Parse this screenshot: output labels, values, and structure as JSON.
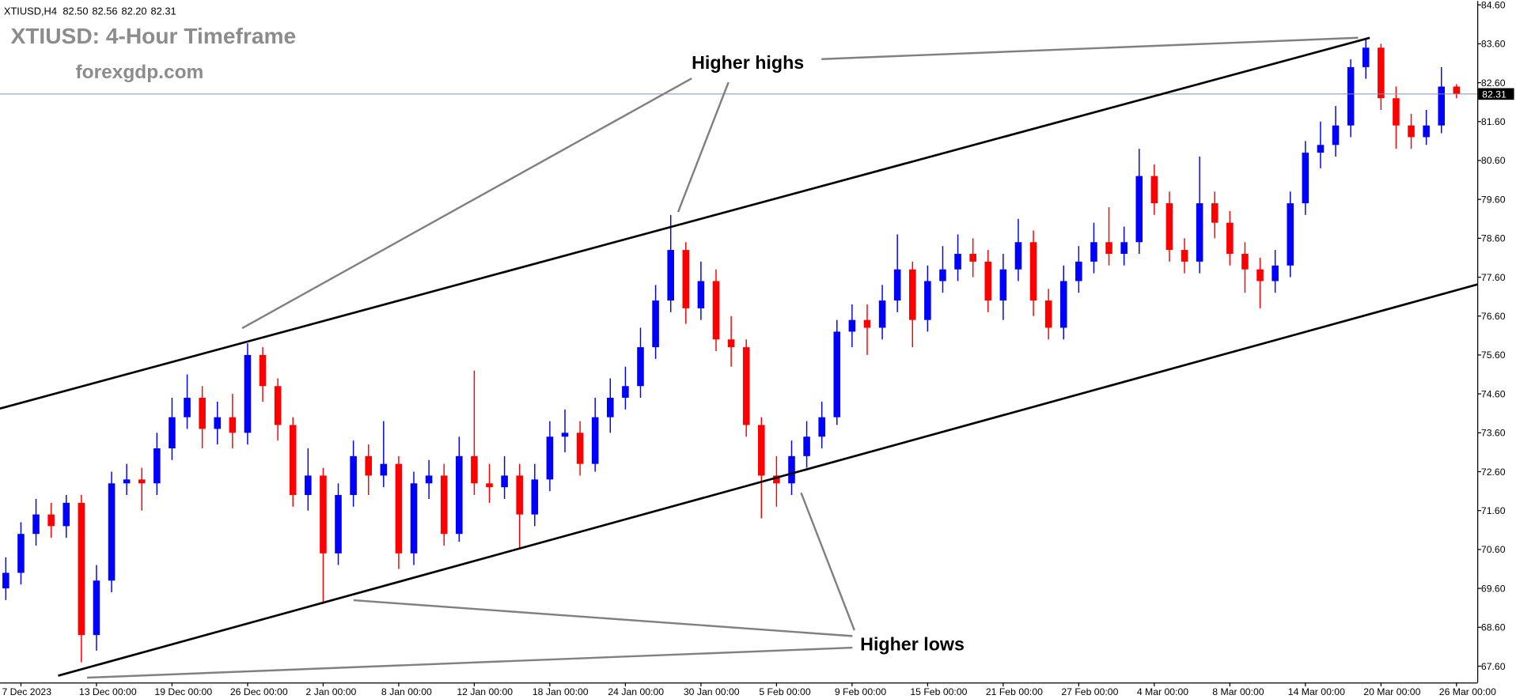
{
  "chart_data": {
    "type": "candlestick",
    "title": "XTIUSD: 4-Hour Timeframe",
    "watermark": "forexgdp.com",
    "quote": {
      "symbol": "XTIUSD,H4",
      "values": [
        "82.50",
        "82.56",
        "82.20",
        "82.31"
      ]
    },
    "annotations": [
      "Higher highs",
      "Higher lows"
    ],
    "up_color": "#0000ff",
    "down_color": "#ff0000",
    "categories": [
      null,
      "7 Dec 2023",
      null,
      null,
      null,
      null,
      "13 Dec 00:00",
      null,
      null,
      null,
      null,
      "19 Dec 00:00",
      null,
      null,
      null,
      null,
      "26 Dec 00:00",
      null,
      null,
      null,
      null,
      "2 Jan 00:00",
      null,
      null,
      null,
      null,
      "8 Jan 00:00",
      null,
      null,
      null,
      null,
      "12 Jan 00:00",
      null,
      null,
      null,
      null,
      "18 Jan 00:00",
      null,
      null,
      null,
      null,
      "24 Jan 00:00",
      null,
      null,
      null,
      null,
      "30 Jan 00:00",
      null,
      null,
      null,
      null,
      "5 Feb 00:00",
      null,
      null,
      null,
      null,
      "9 Feb 00:00",
      null,
      null,
      null,
      null,
      "15 Feb 00:00",
      null,
      null,
      null,
      null,
      "21 Feb 00:00",
      null,
      null,
      null,
      null,
      "27 Feb 00:00",
      null,
      null,
      null,
      null,
      "4 Mar 00:00",
      null,
      null,
      null,
      null,
      "8 Mar 00:00",
      null,
      null,
      null,
      null,
      "14 Mar 00:00",
      null,
      null,
      null,
      null,
      "20 Mar 00:00",
      null,
      null,
      null,
      null,
      "26 Mar 00:00"
    ],
    "open": [
      69.6,
      70.0,
      71.0,
      71.5,
      71.2,
      71.8,
      68.4,
      69.8,
      72.3,
      72.4,
      72.3,
      73.2,
      74.0,
      74.5,
      73.7,
      74.0,
      73.6,
      75.6,
      74.8,
      73.8,
      72.0,
      72.5,
      70.5,
      72.0,
      73.0,
      72.5,
      72.8,
      70.5,
      72.3,
      72.5,
      71.0,
      73.0,
      72.3,
      72.2,
      72.5,
      71.5,
      72.4,
      73.5,
      73.6,
      72.8,
      74.0,
      74.5,
      74.8,
      75.8,
      77.0,
      78.3,
      76.8,
      77.5,
      76.0,
      75.8,
      73.8,
      72.5,
      72.3,
      73.0,
      73.5,
      74.0,
      76.2,
      76.5,
      76.3,
      77.0,
      77.8,
      76.5,
      77.5,
      77.8,
      78.2,
      78.0,
      77.0,
      77.8,
      78.5,
      77.0,
      76.3,
      77.5,
      78.0,
      78.5,
      78.2,
      78.5,
      80.2,
      79.5,
      78.3,
      78.0,
      79.5,
      79.0,
      78.2,
      77.8,
      77.5,
      77.9,
      79.5,
      80.8,
      81.0,
      81.5,
      83.0,
      83.5,
      82.2,
      81.5,
      81.2,
      81.5,
      82.5
    ],
    "high": [
      70.4,
      71.3,
      71.9,
      71.8,
      72.0,
      72.0,
      70.2,
      72.6,
      72.8,
      72.7,
      73.6,
      74.5,
      75.1,
      74.8,
      74.4,
      74.6,
      75.9,
      75.8,
      75.0,
      74.0,
      73.2,
      72.7,
      72.3,
      73.4,
      73.3,
      73.9,
      73.0,
      72.6,
      72.9,
      72.8,
      73.5,
      75.2,
      72.8,
      73.0,
      72.8,
      72.8,
      73.9,
      74.2,
      73.9,
      74.5,
      75.0,
      75.3,
      76.3,
      77.4,
      79.2,
      78.5,
      78.0,
      77.8,
      76.6,
      76.0,
      74.0,
      73.0,
      73.4,
      73.9,
      74.4,
      76.5,
      76.9,
      76.9,
      77.4,
      78.7,
      78.0,
      77.9,
      78.4,
      78.7,
      78.6,
      78.3,
      78.2,
      79.1,
      78.8,
      77.3,
      77.9,
      78.4,
      79.0,
      79.4,
      78.9,
      80.9,
      80.5,
      79.8,
      78.6,
      80.7,
      79.8,
      79.3,
      78.5,
      78.1,
      78.3,
      79.8,
      81.1,
      81.6,
      82.0,
      83.2,
      83.7,
      83.6,
      82.5,
      81.8,
      81.9,
      83.0,
      82.56
    ],
    "low": [
      69.3,
      69.7,
      70.7,
      70.9,
      70.9,
      67.7,
      68.0,
      69.5,
      72.0,
      71.6,
      72.0,
      72.9,
      73.7,
      73.2,
      73.3,
      73.2,
      73.3,
      74.4,
      73.4,
      71.7,
      71.6,
      69.2,
      70.2,
      71.7,
      72.0,
      72.2,
      70.1,
      70.2,
      71.9,
      70.7,
      70.8,
      72.0,
      71.8,
      71.9,
      70.6,
      71.2,
      72.1,
      73.1,
      72.5,
      72.6,
      73.6,
      74.2,
      74.5,
      75.5,
      76.7,
      76.4,
      76.5,
      75.7,
      75.3,
      73.5,
      71.4,
      71.7,
      72.0,
      72.7,
      73.2,
      73.8,
      75.8,
      75.6,
      76.0,
      76.7,
      75.8,
      76.2,
      77.2,
      77.5,
      77.6,
      76.7,
      76.5,
      77.5,
      76.6,
      76.0,
      76.0,
      77.2,
      77.7,
      77.9,
      77.9,
      78.2,
      79.2,
      78.0,
      77.7,
      77.7,
      78.6,
      77.9,
      77.2,
      76.8,
      77.2,
      77.6,
      79.2,
      80.4,
      80.7,
      81.2,
      82.7,
      81.9,
      80.9,
      80.9,
      81.0,
      81.3,
      82.2
    ],
    "close": [
      70.0,
      71.0,
      71.5,
      71.2,
      71.8,
      68.4,
      69.8,
      72.3,
      72.4,
      72.3,
      73.2,
      74.0,
      74.5,
      73.7,
      74.0,
      73.6,
      75.6,
      74.8,
      73.8,
      72.0,
      72.5,
      70.5,
      72.0,
      73.0,
      72.5,
      72.8,
      70.5,
      72.3,
      72.5,
      71.0,
      73.0,
      72.3,
      72.2,
      72.5,
      71.5,
      72.4,
      73.5,
      73.6,
      72.8,
      74.0,
      74.5,
      74.8,
      75.8,
      77.0,
      78.3,
      76.8,
      77.5,
      76.0,
      75.8,
      73.8,
      72.5,
      72.3,
      73.0,
      73.5,
      74.0,
      76.2,
      76.5,
      76.3,
      77.0,
      77.8,
      76.5,
      77.5,
      77.8,
      78.2,
      78.0,
      77.0,
      77.8,
      78.5,
      77.0,
      76.3,
      77.5,
      78.0,
      78.5,
      78.2,
      78.5,
      80.2,
      79.5,
      78.3,
      78.0,
      79.5,
      79.0,
      78.2,
      77.8,
      77.5,
      77.9,
      79.5,
      80.8,
      81.0,
      81.5,
      83.0,
      83.5,
      82.2,
      81.5,
      81.2,
      81.5,
      82.5,
      82.31
    ],
    "ylim": [
      67.18,
      84.7
    ],
    "yticks": [
      {
        "value": 67.6,
        "label": "67.60"
      },
      {
        "value": 68.6,
        "label": "68.60"
      },
      {
        "value": 69.6,
        "label": "69.60"
      },
      {
        "value": 70.6,
        "label": "70.60"
      },
      {
        "value": 71.6,
        "label": "71.60"
      },
      {
        "value": 72.6,
        "label": "72.60"
      },
      {
        "value": 73.6,
        "label": "73.60"
      },
      {
        "value": 74.6,
        "label": "74.60"
      },
      {
        "value": 75.6,
        "label": "75.60"
      },
      {
        "value": 76.6,
        "label": "76.60"
      },
      {
        "value": 77.6,
        "label": "77.60"
      },
      {
        "value": 78.6,
        "label": "78.60"
      },
      {
        "value": 79.6,
        "label": "79.60"
      },
      {
        "value": 80.6,
        "label": "80.60"
      },
      {
        "value": 81.6,
        "label": "81.60"
      },
      {
        "value": 82.6,
        "label": "82.60"
      },
      {
        "value": 83.6,
        "label": "83.60"
      },
      {
        "value": 84.6,
        "label": "84.60"
      }
    ]
  }
}
